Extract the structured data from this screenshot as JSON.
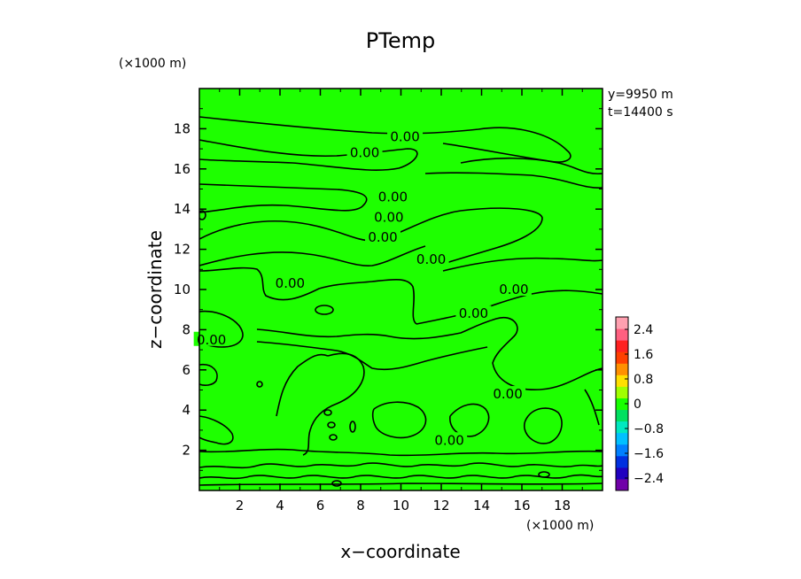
{
  "chart_data": {
    "type": "heatmap",
    "title": "PTemp",
    "xlabel": "x−coordinate",
    "ylabel": "z−coordinate",
    "x_unit": "(×1000 m)",
    "y_unit": "(×1000 m)",
    "xlim": [
      0,
      20
    ],
    "ylim": [
      0,
      20
    ],
    "x_ticks": [
      2,
      4,
      6,
      8,
      10,
      12,
      14,
      16,
      18
    ],
    "y_ticks": [
      2,
      4,
      6,
      8,
      10,
      12,
      14,
      16,
      18
    ],
    "info": [
      "y=9950  m",
      "t=14400 s"
    ],
    "field_value_dominant": 0.0,
    "contour_labels": [
      {
        "text": "0.00",
        "x": 10.2,
        "z": 17.6
      },
      {
        "text": "0.00",
        "x": 8.2,
        "z": 16.8
      },
      {
        "text": "0.00",
        "x": 9.6,
        "z": 14.6
      },
      {
        "text": "0.00",
        "x": 9.4,
        "z": 13.6
      },
      {
        "text": "0.00",
        "x": 9.1,
        "z": 12.6
      },
      {
        "text": "0.00",
        "x": 11.5,
        "z": 11.5
      },
      {
        "text": "0.00",
        "x": 4.5,
        "z": 10.3
      },
      {
        "text": "0.00",
        "x": 15.6,
        "z": 10.0
      },
      {
        "text": "0.00",
        "x": 13.6,
        "z": 8.8
      },
      {
        "text": "0.00",
        "x": 0.6,
        "z": 7.5
      },
      {
        "text": "0.00",
        "x": 15.3,
        "z": 4.8
      },
      {
        "text": "0.00",
        "x": 12.4,
        "z": 2.5
      }
    ],
    "colorbar": {
      "tick_labels": [
        "2.4",
        "1.6",
        "0.8",
        "0",
        "−0.8",
        "−1.6",
        "−2.4"
      ],
      "tick_values": [
        2.4,
        1.6,
        0.8,
        0,
        -0.8,
        -1.6,
        -2.4
      ],
      "range": [
        -2.8,
        2.8
      ],
      "colors": [
        "#7000a8",
        "#2000c0",
        "#0030e0",
        "#0080ff",
        "#00c0ff",
        "#00e8c0",
        "#00e060",
        "#18ff00",
        "#a0ff00",
        "#ffe000",
        "#ff9000",
        "#ff4000",
        "#ff2020",
        "#ff6080",
        "#ffa0b0"
      ]
    },
    "colors": {
      "field": "#1eff00",
      "contour": "#000000"
    }
  }
}
